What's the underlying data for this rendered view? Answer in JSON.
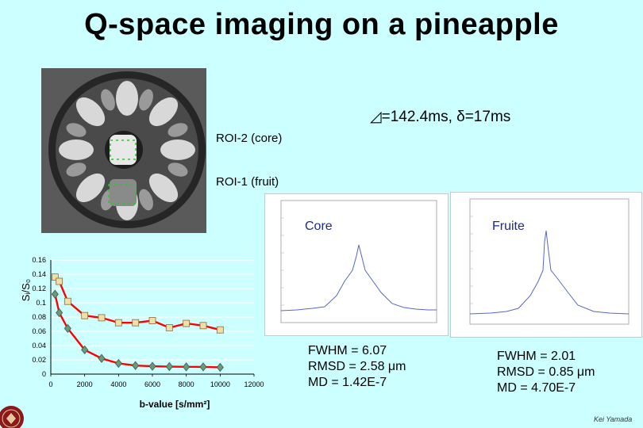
{
  "slide": {
    "title": "Q-space imaging on a pineapple",
    "params": "◿=142.4ms, δ=17ms",
    "roi2_label": "ROI-2 (core)",
    "roi1_label": "ROI-1 (fruit)",
    "core_label": "Core",
    "fruit_label": "Fruite",
    "core_stats": [
      "FWHM = 6.07",
      "RMSD = 2.58 μm",
      "MD = 1.42E-7"
    ],
    "fruit_stats": [
      "FWHM = 2.01",
      "RMSD = 0.85 μm",
      "MD = 4.70E-7"
    ],
    "footer": "Kei Yamada",
    "accent_roi": "#22cc22",
    "series_color": "#ff0000"
  },
  "chart_data": {
    "type": "line",
    "xlabel": "b-value [s/mm²]",
    "ylabel": "Sᵢ/S₀",
    "xlim": [
      0,
      12000
    ],
    "ylim": [
      0,
      0.16
    ],
    "xticks": [
      "0",
      "2000",
      "4000",
      "6000",
      "8000",
      "10000",
      "12000"
    ],
    "yticks": [
      "0",
      "0.02",
      "0.04",
      "0.06",
      "0.08",
      "0.1",
      "0.12",
      "0.14",
      "0.16"
    ],
    "series": [
      {
        "marker": "square",
        "x": [
          250,
          500,
          1000,
          2000,
          3000,
          4000,
          5000,
          6000,
          7000,
          8000,
          9000,
          10000
        ],
        "y": [
          0.136,
          0.13,
          0.102,
          0.082,
          0.079,
          0.072,
          0.072,
          0.075,
          0.065,
          0.071,
          0.068,
          0.062
        ]
      },
      {
        "marker": "diamond",
        "x": [
          250,
          500,
          1000,
          2000,
          3000,
          4000,
          5000,
          6000,
          7000,
          8000,
          9000,
          10000
        ],
        "y": [
          0.112,
          0.086,
          0.064,
          0.034,
          0.022,
          0.015,
          0.012,
          0.011,
          0.0105,
          0.0102,
          0.0101,
          0.0095
        ]
      }
    ]
  }
}
